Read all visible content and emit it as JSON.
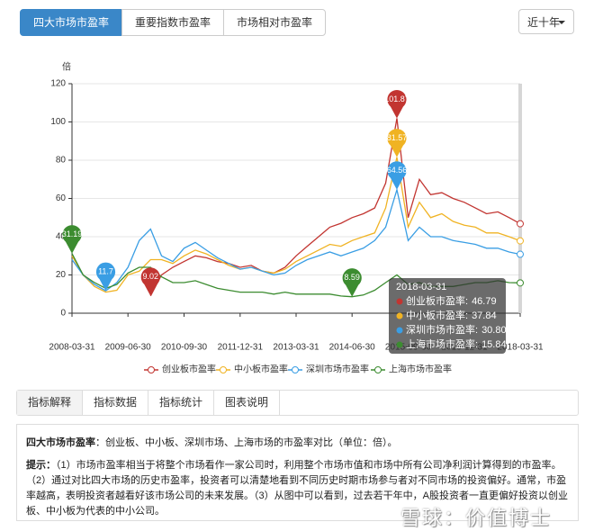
{
  "tabs": {
    "items": [
      "四大市场市盈率",
      "重要指数市盈率",
      "市场相对市盈率"
    ],
    "active": 0
  },
  "range_selector": "近十年",
  "chart_data": {
    "type": "line",
    "y_label": "倍",
    "x": [
      "2008-03-31",
      "2008-06-30",
      "2008-09-30",
      "2008-12-31",
      "2009-03-31",
      "2009-06-30",
      "2009-09-30",
      "2009-12-31",
      "2010-03-31",
      "2010-06-30",
      "2010-09-30",
      "2010-12-31",
      "2011-03-31",
      "2011-06-30",
      "2011-09-30",
      "2011-12-31",
      "2012-03-31",
      "2012-06-30",
      "2012-09-30",
      "2012-12-31",
      "2013-03-31",
      "2013-06-30",
      "2013-09-30",
      "2013-12-31",
      "2014-03-31",
      "2014-06-30",
      "2014-09-30",
      "2014-12-31",
      "2015-03-31",
      "2015-06-30",
      "2015-09-30",
      "2015-12-31",
      "2016-03-31",
      "2016-06-30",
      "2016-09-30",
      "2016-12-31",
      "2017-03-31",
      "2017-06-30",
      "2017-09-30",
      "2017-12-31",
      "2018-03-31"
    ],
    "xlim": [
      "2008-03-31",
      "2018-03-31"
    ],
    "xticks": [
      "2008-03-31",
      "2009-06-30",
      "2010-09-30",
      "2011-12-31",
      "2013-03-31",
      "2014-06-30",
      "2015-09-30",
      "2016-12-31",
      "2018-03-31"
    ],
    "ylim": [
      0,
      120
    ],
    "yticks": [
      0,
      20,
      40,
      60,
      80,
      100,
      120
    ],
    "grid": true,
    "series": [
      {
        "name": "创业板市盈率",
        "color": "#c23531",
        "mark_points": [
          "max",
          "min"
        ],
        "values": [
          null,
          null,
          null,
          null,
          null,
          null,
          null,
          9.02,
          20,
          24,
          27,
          30,
          29,
          27,
          26,
          24,
          25,
          22,
          21,
          24,
          30,
          35,
          40,
          45,
          47,
          50,
          52,
          55,
          68,
          101.87,
          50,
          70,
          62,
          63,
          60,
          58,
          55,
          52,
          53,
          50,
          46.79
        ]
      },
      {
        "name": "中小板市盈率",
        "color": "#f0b323",
        "mark_points": [
          "max"
        ],
        "values": [
          30,
          20,
          14,
          11,
          12,
          20,
          22,
          28,
          28,
          26,
          30,
          33,
          31,
          28,
          25,
          23,
          24,
          22,
          21,
          23,
          27,
          30,
          33,
          36,
          35,
          38,
          40,
          42,
          55,
          81.57,
          45,
          58,
          50,
          52,
          48,
          46,
          45,
          42,
          42,
          40,
          37.84
        ]
      },
      {
        "name": "深圳市场市盈率",
        "color": "#3a9ee4",
        "mark_points": [
          "max",
          "min"
        ],
        "values": [
          28,
          20,
          15,
          11.7,
          16,
          24,
          38,
          44,
          30,
          27,
          34,
          37,
          33,
          29,
          26,
          23,
          24,
          22,
          20,
          21,
          25,
          28,
          30,
          32,
          30,
          32,
          34,
          38,
          45,
          64.56,
          38,
          45,
          40,
          40,
          38,
          37,
          36,
          34,
          34,
          32,
          30.8
        ]
      },
      {
        "name": "上海市场市盈率",
        "color": "#3c8c30",
        "mark_points": [
          "max",
          "min"
        ],
        "values": [
          31.19,
          20,
          16,
          13,
          15,
          21,
          24,
          24,
          19,
          16,
          16,
          17,
          15,
          13,
          12,
          11,
          11,
          11,
          10,
          11,
          10,
          10,
          10,
          10,
          9,
          8.59,
          9.5,
          12,
          16,
          20,
          15,
          16,
          14,
          14,
          14,
          15,
          16,
          16,
          17,
          16,
          15.84
        ]
      }
    ],
    "tooltip": {
      "title": "2018-03-31",
      "rows": [
        {
          "label": "创业板市盈率:",
          "value": 46.79
        },
        {
          "label": "中小板市盈率:",
          "value": 37.84
        },
        {
          "label": "深圳市场市盈率:",
          "value": 30.8,
          "value_label": "30.80"
        },
        {
          "label": "上海市场市盈率:",
          "value": 15.84
        }
      ]
    }
  },
  "info_tabs": {
    "items": [
      "指标解释",
      "指标数据",
      "指标统计",
      "图表说明"
    ],
    "active": 0
  },
  "info": {
    "title": "四大市场市盈率",
    "title_text": "：创业板、中小板、深圳市场、上海市场的市盈率对比（单位：倍）。",
    "hint_label": "提示：",
    "hint_text": "（1）市场市盈率相当于将整个市场看作一家公司时，利用整个市场市值和市场中所有公司净利润计算得到的市盈率。（2）通过对比四大市场的历史市盈率，投资者可以清楚地看到不同历史时期市场参与者对不同市场的投资偏好。通常，市盈率越高，表明投资者越看好该市场公司的未来发展。（3）从图中可以看到，过去若干年中，A股投资者一直更偏好投资以创业板、中小板为代表的中小公司。"
  },
  "watermark": "雪球：价值博士"
}
